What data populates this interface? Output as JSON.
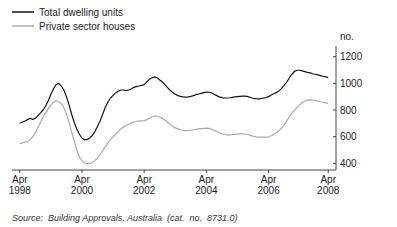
{
  "chart_data": {
    "type": "line",
    "ylabel": "no.",
    "source": "Source:  Building Approvals, Australia  (cat.  no.  8731.0)",
    "legend": "upper left",
    "grid": false,
    "ylim": [
      350,
      1280
    ],
    "yticks": [
      400,
      600,
      800,
      1000,
      1200
    ],
    "categories": [
      "Apr\n1998",
      null,
      null,
      null,
      null,
      null,
      null,
      null,
      null,
      null,
      null,
      null,
      null,
      null,
      null,
      null,
      null,
      null,
      null,
      null,
      null,
      null,
      null,
      null,
      "Apr\n2000",
      null,
      null,
      null,
      null,
      null,
      null,
      null,
      null,
      null,
      null,
      null,
      null,
      null,
      null,
      null,
      null,
      null,
      null,
      null,
      null,
      null,
      null,
      null,
      "Apr\n2002",
      null,
      null,
      null,
      null,
      null,
      null,
      null,
      null,
      null,
      null,
      null,
      null,
      null,
      null,
      null,
      null,
      null,
      null,
      null,
      null,
      null,
      null,
      null,
      "Apr\n2004",
      null,
      null,
      null,
      null,
      null,
      null,
      null,
      null,
      null,
      null,
      null,
      null,
      null,
      null,
      null,
      null,
      null,
      null,
      null,
      null,
      null,
      null,
      null,
      "Apr\n2006",
      null,
      null,
      null,
      null,
      null,
      null,
      null,
      null,
      null,
      null,
      null,
      null,
      null,
      null,
      null,
      null,
      null,
      null,
      null,
      null,
      null,
      null,
      "Apr\n2008"
    ],
    "series": [
      {
        "name": "Total dwelling units",
        "color": "#111111",
        "values": [
          700,
          710,
          718,
          728,
          738,
          730,
          738,
          758,
          778,
          800,
          832,
          870,
          918,
          958,
          990,
          1000,
          980,
          950,
          900,
          840,
          768,
          708,
          658,
          618,
          588,
          578,
          578,
          590,
          610,
          638,
          678,
          720,
          768,
          820,
          858,
          890,
          910,
          928,
          940,
          950,
          950,
          945,
          950,
          958,
          970,
          975,
          980,
          985,
          990,
          1010,
          1030,
          1042,
          1048,
          1042,
          1025,
          1010,
          990,
          968,
          948,
          932,
          918,
          908,
          902,
          898,
          896,
          898,
          902,
          908,
          915,
          920,
          925,
          930,
          935,
          933,
          928,
          918,
          908,
          898,
          893,
          890,
          890,
          892,
          895,
          898,
          900,
          902,
          904,
          904,
          900,
          894,
          888,
          885,
          884,
          886,
          889,
          894,
          900,
          912,
          922,
          932,
          943,
          962,
          985,
          1010,
          1040,
          1068,
          1090,
          1098,
          1098,
          1093,
          1088,
          1082,
          1078,
          1072,
          1068,
          1063,
          1058,
          1053,
          1048,
          1043
        ]
      },
      {
        "name": "Private sector houses",
        "color": "#aaaaaa",
        "values": [
          548,
          553,
          558,
          563,
          578,
          598,
          630,
          668,
          710,
          748,
          778,
          808,
          838,
          858,
          868,
          862,
          848,
          818,
          768,
          708,
          638,
          568,
          498,
          448,
          418,
          403,
          398,
          400,
          408,
          420,
          440,
          465,
          495,
          523,
          553,
          578,
          598,
          618,
          638,
          658,
          673,
          683,
          693,
          703,
          710,
          714,
          716,
          718,
          720,
          728,
          738,
          748,
          754,
          753,
          746,
          736,
          723,
          708,
          692,
          677,
          666,
          658,
          652,
          648,
          646,
          647,
          649,
          652,
          655,
          658,
          660,
          662,
          664,
          662,
          656,
          648,
          638,
          628,
          620,
          616,
          614,
          614,
          615,
          617,
          619,
          621,
          622,
          620,
          616,
          610,
          604,
          599,
          596,
          596,
          596,
          597,
          599,
          607,
          617,
          629,
          644,
          664,
          688,
          718,
          748,
          778,
          798,
          818,
          838,
          856,
          868,
          874,
          876,
          874,
          870,
          866,
          862,
          858,
          854,
          850
        ]
      }
    ]
  }
}
